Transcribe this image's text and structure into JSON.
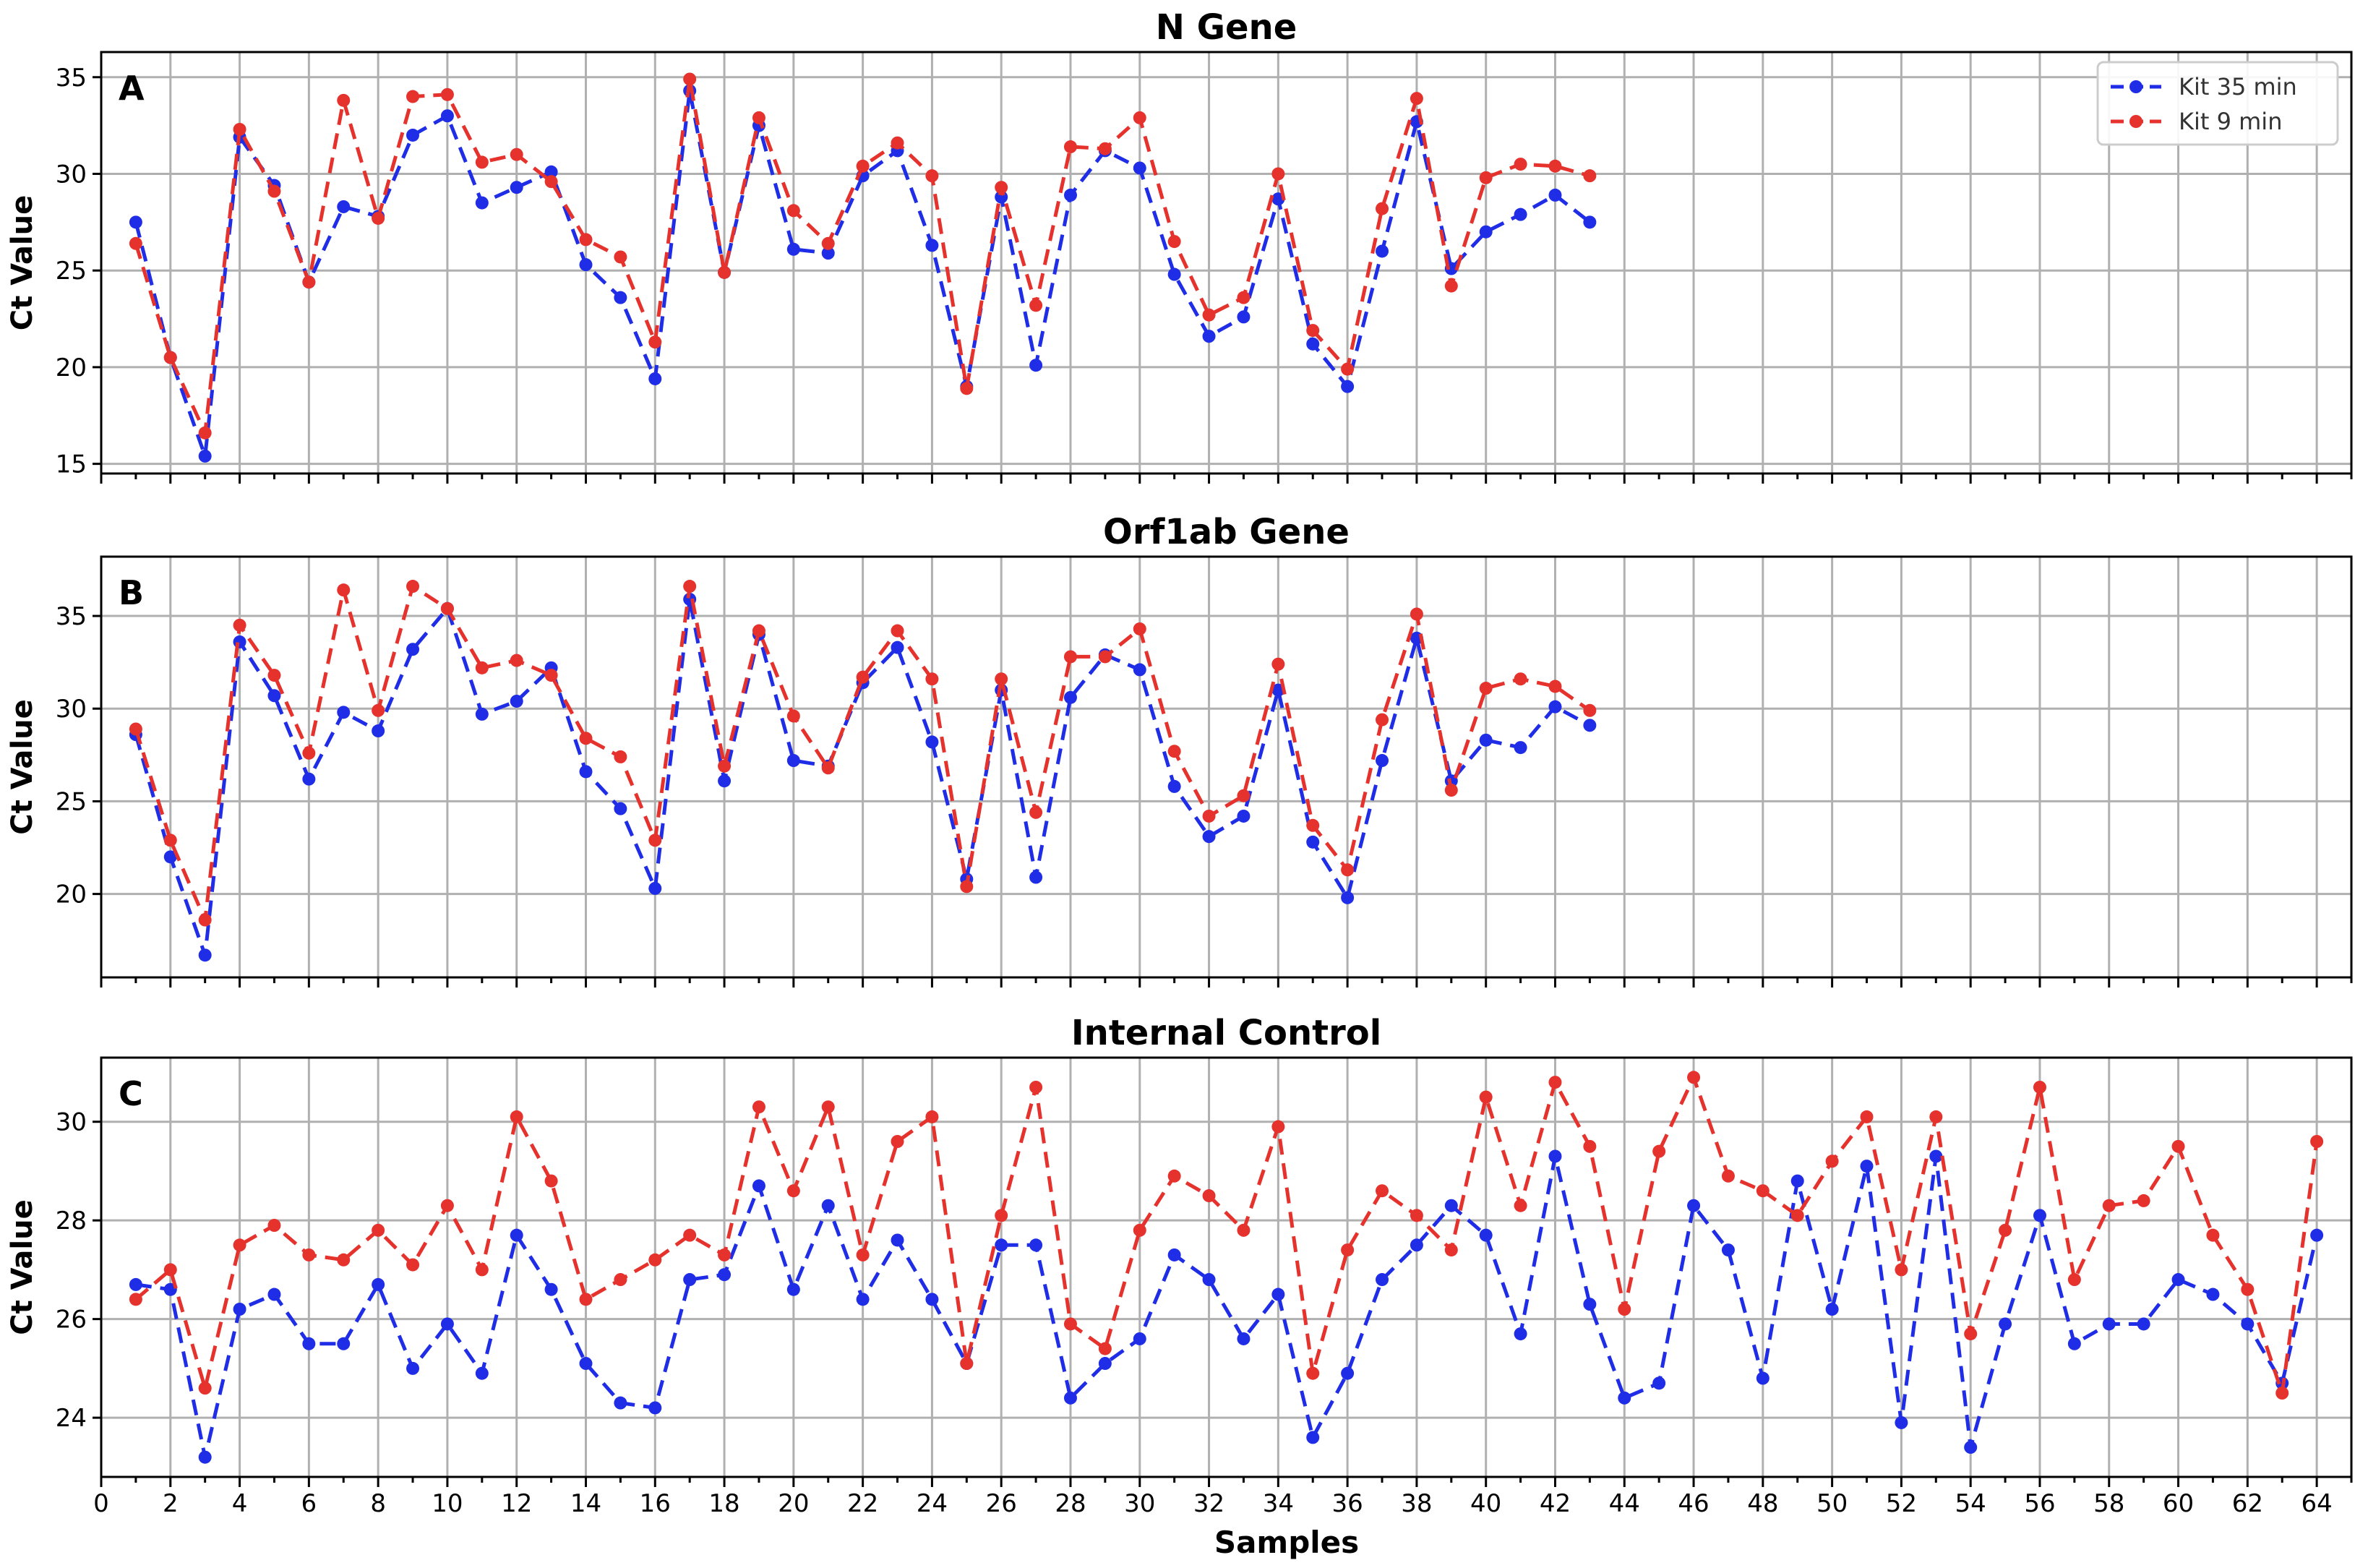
{
  "figure": {
    "xlabel": "Samples",
    "ylabel": "Ct Value",
    "legend_position": "top-right",
    "colors": {
      "kit35": "#1f2ee6",
      "kit9": "#e5322d"
    }
  },
  "chart_data": [
    {
      "type": "line",
      "panel": "A",
      "title": "N Gene",
      "ylabel": "Ct Value",
      "xlim": [
        0,
        65
      ],
      "ylim": [
        14.5,
        36.3
      ],
      "yticks": [
        15,
        20,
        25,
        30,
        35
      ],
      "xticks": [],
      "grid": true,
      "legend": true,
      "x": [
        1,
        2,
        3,
        4,
        5,
        6,
        7,
        8,
        9,
        10,
        11,
        12,
        13,
        14,
        15,
        16,
        17,
        18,
        19,
        20,
        21,
        22,
        23,
        24,
        25,
        26,
        27,
        28,
        29,
        30,
        31,
        32,
        33,
        34,
        35,
        36,
        37,
        38,
        39,
        40,
        41,
        42,
        43
      ],
      "series": [
        {
          "name": "Kit 35 min",
          "color": "#1f2ee6",
          "values": [
            27.5,
            20.5,
            15.4,
            31.9,
            29.4,
            24.4,
            28.3,
            27.8,
            32.0,
            33.0,
            28.5,
            29.3,
            30.1,
            25.3,
            23.6,
            19.4,
            34.3,
            24.9,
            32.5,
            26.1,
            25.9,
            29.9,
            31.2,
            26.3,
            19.0,
            28.8,
            20.1,
            28.9,
            31.2,
            30.3,
            24.8,
            21.6,
            22.6,
            28.7,
            21.2,
            19.0,
            26.0,
            32.7,
            25.1,
            27.0,
            27.9,
            28.9,
            27.5
          ]
        },
        {
          "name": "Kit 9 min",
          "color": "#e5322d",
          "values": [
            26.4,
            20.5,
            16.6,
            32.3,
            29.1,
            24.4,
            33.8,
            27.7,
            34.0,
            34.1,
            30.6,
            31.0,
            29.6,
            26.6,
            25.7,
            21.3,
            34.9,
            24.9,
            32.9,
            28.1,
            26.4,
            30.4,
            31.6,
            29.9,
            18.9,
            29.3,
            23.2,
            31.4,
            31.3,
            32.9,
            26.5,
            22.7,
            23.6,
            30.0,
            21.9,
            19.9,
            28.2,
            33.9,
            24.2,
            29.8,
            30.5,
            30.4,
            29.9
          ]
        }
      ]
    },
    {
      "type": "line",
      "panel": "B",
      "title": "Orf1ab Gene",
      "ylabel": "Ct Value",
      "xlim": [
        0,
        65
      ],
      "ylim": [
        15.5,
        38.2
      ],
      "yticks": [
        20,
        25,
        30,
        35
      ],
      "xticks": [],
      "grid": true,
      "legend": false,
      "x": [
        1,
        2,
        3,
        4,
        5,
        6,
        7,
        8,
        9,
        10,
        11,
        12,
        13,
        14,
        15,
        16,
        17,
        18,
        19,
        20,
        21,
        22,
        23,
        24,
        25,
        26,
        27,
        28,
        29,
        30,
        31,
        32,
        33,
        34,
        35,
        36,
        37,
        38,
        39,
        40,
        41,
        42,
        43
      ],
      "series": [
        {
          "name": "Kit 35 min",
          "color": "#1f2ee6",
          "values": [
            28.6,
            22.0,
            16.7,
            33.6,
            30.7,
            26.2,
            29.8,
            28.8,
            33.2,
            35.4,
            29.7,
            30.4,
            32.2,
            26.6,
            24.6,
            20.3,
            35.9,
            26.1,
            34.0,
            27.2,
            26.9,
            31.4,
            33.3,
            28.2,
            20.8,
            31.0,
            20.9,
            30.6,
            32.9,
            32.1,
            25.8,
            23.1,
            24.2,
            31.0,
            22.8,
            19.8,
            27.2,
            33.8,
            26.1,
            28.3,
            27.9,
            30.1,
            29.1
          ]
        },
        {
          "name": "Kit 9 min",
          "color": "#e5322d",
          "values": [
            28.9,
            22.9,
            18.6,
            34.5,
            31.8,
            27.6,
            36.4,
            29.9,
            36.6,
            35.4,
            32.2,
            32.6,
            31.8,
            28.4,
            27.4,
            22.9,
            36.6,
            26.9,
            34.2,
            29.6,
            26.8,
            31.7,
            34.2,
            31.6,
            20.4,
            31.6,
            24.4,
            32.8,
            32.8,
            34.3,
            27.7,
            24.2,
            25.3,
            32.4,
            23.7,
            21.3,
            29.4,
            35.1,
            25.6,
            31.1,
            31.6,
            31.2,
            29.9
          ]
        }
      ]
    },
    {
      "type": "line",
      "panel": "C",
      "title": "Internal Control",
      "ylabel": "Ct Value",
      "xlabel": "Samples",
      "xlim": [
        0,
        65
      ],
      "ylim": [
        22.8,
        31.3
      ],
      "yticks": [
        24,
        26,
        28,
        30
      ],
      "xticks": [
        0,
        2,
        4,
        6,
        8,
        10,
        12,
        14,
        16,
        18,
        20,
        22,
        24,
        26,
        28,
        30,
        32,
        34,
        36,
        38,
        40,
        42,
        44,
        46,
        48,
        50,
        52,
        54,
        56,
        58,
        60,
        62,
        64
      ],
      "grid": true,
      "legend": false,
      "x": [
        1,
        2,
        3,
        4,
        5,
        6,
        7,
        8,
        9,
        10,
        11,
        12,
        13,
        14,
        15,
        16,
        17,
        18,
        19,
        20,
        21,
        22,
        23,
        24,
        25,
        26,
        27,
        28,
        29,
        30,
        31,
        32,
        33,
        34,
        35,
        36,
        37,
        38,
        39,
        40,
        41,
        42,
        43,
        44,
        45,
        46,
        47,
        48,
        49,
        50,
        51,
        52,
        53,
        54,
        55,
        56,
        57,
        58,
        59,
        60,
        61,
        62,
        63,
        64
      ],
      "series": [
        {
          "name": "Kit 35 min",
          "color": "#1f2ee6",
          "values": [
            26.7,
            26.6,
            23.2,
            26.2,
            26.5,
            25.5,
            25.5,
            26.7,
            25.0,
            25.9,
            24.9,
            27.7,
            26.6,
            25.1,
            24.3,
            24.2,
            26.8,
            26.9,
            28.7,
            26.6,
            28.3,
            26.4,
            27.6,
            26.4,
            25.1,
            27.5,
            27.5,
            24.4,
            25.1,
            25.6,
            27.3,
            26.8,
            25.6,
            26.5,
            23.6,
            24.9,
            26.8,
            27.5,
            28.3,
            27.7,
            25.7,
            29.3,
            26.3,
            24.4,
            24.7,
            28.3,
            27.4,
            24.8,
            28.8,
            26.2,
            29.1,
            23.9,
            29.3,
            23.4,
            25.9,
            28.1,
            25.5,
            25.9,
            25.9,
            26.8,
            26.5,
            25.9,
            24.7,
            27.7
          ]
        },
        {
          "name": "Kit 9 min",
          "color": "#e5322d",
          "values": [
            26.4,
            27.0,
            24.6,
            27.5,
            27.9,
            27.3,
            27.2,
            27.8,
            27.1,
            28.3,
            27.0,
            30.1,
            28.8,
            26.4,
            26.8,
            27.2,
            27.7,
            27.3,
            30.3,
            28.6,
            30.3,
            27.3,
            29.6,
            30.1,
            25.1,
            28.1,
            30.7,
            25.9,
            25.4,
            27.8,
            28.9,
            28.5,
            27.8,
            29.9,
            24.9,
            27.4,
            28.6,
            28.1,
            27.4,
            30.5,
            28.3,
            30.8,
            29.5,
            26.2,
            29.4,
            30.9,
            28.9,
            28.6,
            28.1,
            29.2,
            30.1,
            27.0,
            30.1,
            25.7,
            27.8,
            30.7,
            26.8,
            28.3,
            28.4,
            29.5,
            27.7,
            26.6,
            24.5,
            29.6
          ]
        }
      ]
    }
  ]
}
